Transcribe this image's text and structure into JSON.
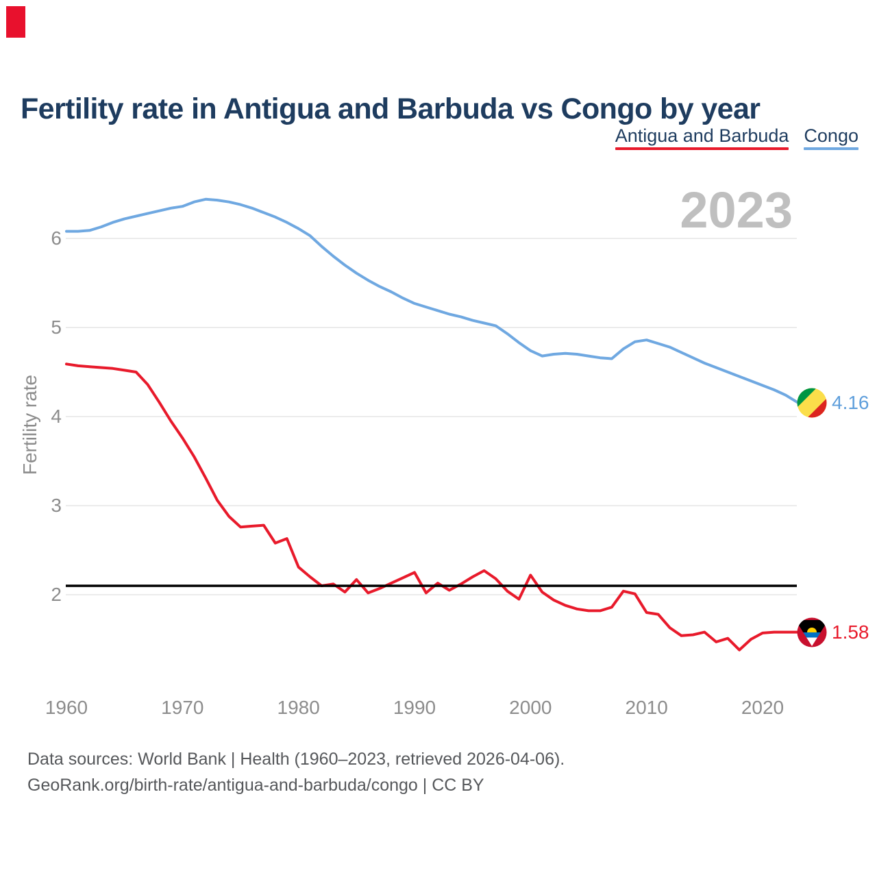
{
  "marker_color": "#e8112d",
  "title": "Fertility rate in Antigua and Barbuda vs Congo by year",
  "legend": [
    {
      "label": "Antigua and Barbuda",
      "color": "#e81a2b"
    },
    {
      "label": "Congo",
      "color": "#6fa8e1"
    }
  ],
  "watermark": "2023",
  "ylabel": "Fertility rate",
  "end_labels": [
    {
      "series": "Congo",
      "value": "4.16",
      "color": "#5e9edb",
      "flag": "congo-flag"
    },
    {
      "series": "Antigua and Barbuda",
      "value": "1.58",
      "color": "#e81a2b",
      "flag": "antigua-and-barbuda-flag"
    }
  ],
  "footer": {
    "line1": "Data sources: World Bank | Health (1960–2023, retrieved 2026-04-06).",
    "line2": "GeoRank.org/birth-rate/antigua-and-barbuda/congo | CC BY"
  },
  "chart_data": {
    "type": "line",
    "title": "Fertility rate in Antigua and Barbuda vs Congo by year",
    "xlabel": "",
    "ylabel": "Fertility rate",
    "x_start": 1960,
    "x_end": 2023,
    "xticks": [
      1960,
      1970,
      1980,
      1990,
      2000,
      2010,
      2020
    ],
    "yticks": [
      2,
      3,
      4,
      5,
      6
    ],
    "ylim": [
      1.3,
      6.6
    ],
    "grid": true,
    "legend_position": "top-right",
    "reference_line": {
      "value": 2.1,
      "color": "#000000"
    },
    "series": [
      {
        "name": "Antigua and Barbuda",
        "color": "#e81a2b",
        "end_label": "1.58",
        "values": [
          4.59,
          4.57,
          4.56,
          4.55,
          4.54,
          4.52,
          4.5,
          4.36,
          4.16,
          3.95,
          3.76,
          3.55,
          3.31,
          3.06,
          2.88,
          2.76,
          2.77,
          2.78,
          2.58,
          2.63,
          2.31,
          2.2,
          2.1,
          2.12,
          2.03,
          2.17,
          2.02,
          2.07,
          2.13,
          2.19,
          2.25,
          2.02,
          2.13,
          2.05,
          2.12,
          2.2,
          2.27,
          2.18,
          2.04,
          1.95,
          2.22,
          2.03,
          1.94,
          1.88,
          1.84,
          1.82,
          1.82,
          1.86,
          2.04,
          2.01,
          1.8,
          1.78,
          1.63,
          1.54,
          1.55,
          1.58,
          1.47,
          1.51,
          1.38,
          1.5,
          1.57,
          1.58,
          1.58,
          1.58
        ]
      },
      {
        "name": "Congo",
        "color": "#6fa8e1",
        "end_label": "4.16",
        "values": [
          6.08,
          6.08,
          6.09,
          6.13,
          6.18,
          6.22,
          6.25,
          6.28,
          6.31,
          6.34,
          6.36,
          6.41,
          6.44,
          6.43,
          6.41,
          6.38,
          6.34,
          6.29,
          6.24,
          6.18,
          6.11,
          6.03,
          5.91,
          5.8,
          5.7,
          5.61,
          5.53,
          5.46,
          5.4,
          5.33,
          5.27,
          5.23,
          5.19,
          5.15,
          5.12,
          5.08,
          5.05,
          5.02,
          4.93,
          4.83,
          4.74,
          4.68,
          4.7,
          4.71,
          4.7,
          4.68,
          4.66,
          4.65,
          4.76,
          4.84,
          4.86,
          4.82,
          4.78,
          4.72,
          4.66,
          4.6,
          4.55,
          4.5,
          4.45,
          4.4,
          4.35,
          4.3,
          4.24,
          4.16
        ]
      }
    ]
  }
}
